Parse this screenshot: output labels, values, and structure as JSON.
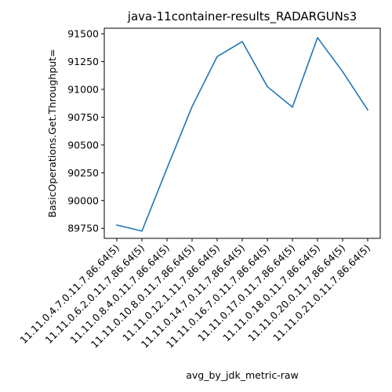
{
  "chart_data": {
    "type": "line",
    "title": "java-11container-results_RADARGUNs3",
    "xlabel": "avg_by_jdk_metric-raw",
    "ylabel": "BasicOperations.Get.Throughput=",
    "categories": [
      "11.11.0.4.7.0.11.7.86.64(5)",
      "11.11.0.6.2.0.11.7.86.64(5)",
      "11.11.0.8.4.0.11.7.86.64(5)",
      "11.11.0.10.8.0.11.7.86.64(5)",
      "11.11.0.12.1.11.7.86.64(5)",
      "11.11.0.14.7.0.11.7.86.64(5)",
      "11.11.0.16.7.0.11.7.86.64(5)",
      "11.11.0.17.0.11.7.86.64(5)",
      "11.11.0.18.0.11.7.86.64(5)",
      "11.11.0.20.0.11.7.86.64(5)",
      "11.11.0.21.0.11.7.86.64(5)"
    ],
    "series": [
      {
        "values": [
          89780,
          89725,
          90290,
          90845,
          91295,
          91430,
          91025,
          90840,
          91465,
          91160,
          90815
        ],
        "color": "#1f77b4"
      }
    ],
    "ylim": [
      89660,
      91550
    ],
    "yticks": [
      "89750",
      "90000",
      "90250",
      "90500",
      "90750",
      "91000",
      "91250",
      "91500"
    ],
    "grid": false,
    "legend": "none"
  }
}
